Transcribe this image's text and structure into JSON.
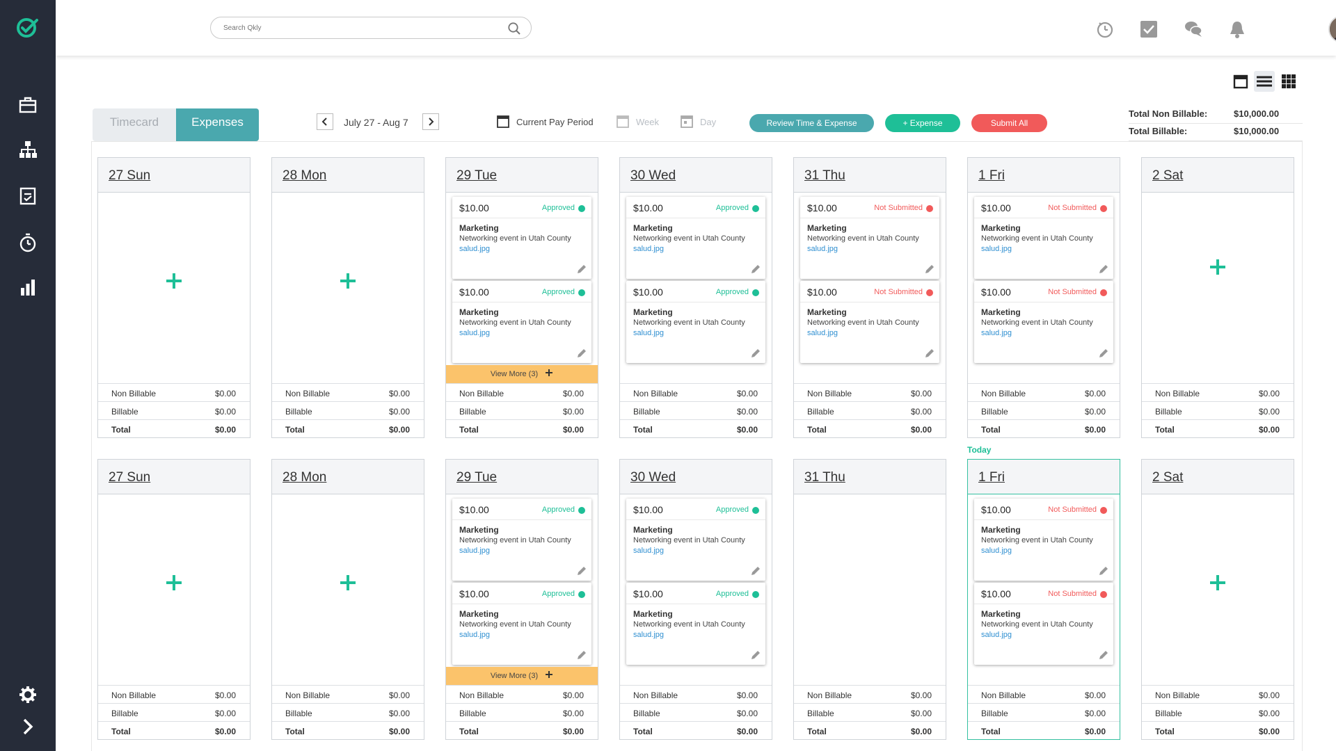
{
  "sidebar": {
    "logo_icon": "check-circle-logo",
    "items": [
      "briefcase-icon",
      "org-chart-icon",
      "clipboard-check-icon",
      "stopwatch-icon",
      "bar-chart-icon"
    ],
    "bottom": [
      "gear-icon",
      "chevron-right-icon"
    ]
  },
  "header": {
    "search_placeholder": "Search Qkly",
    "icons": [
      "timer-icon",
      "task-check-icon",
      "chat-icon",
      "bell-icon"
    ]
  },
  "tabs": [
    {
      "label": "Timecard"
    },
    {
      "label": "Expenses"
    }
  ],
  "pager": {
    "label": "July 27 - Aug 7"
  },
  "periods": [
    {
      "label": "Current Pay Period"
    },
    {
      "label": "Week"
    },
    {
      "label": "Day"
    }
  ],
  "actions": {
    "review": "Review Time & Expense",
    "add": "+ Expense",
    "submit": "Submit All"
  },
  "totals": [
    {
      "label": "Total Non Billable:",
      "value": "$10,000.00"
    },
    {
      "label": "Total Billable:",
      "value": "$10,000.00"
    }
  ],
  "today_label": "Today",
  "colors": {
    "approved": "#1ebf97",
    "not_submitted": "#f15a5a",
    "accent": "#4aa8ae",
    "view_more": "#fbc36b"
  },
  "summary_labels": {
    "non_billable": "Non Billable",
    "billable": "Billable",
    "total": "Total"
  },
  "weeks": [
    [
      {
        "label": "27 Sun",
        "expenses": [],
        "add": true,
        "non_billable": "$0.00",
        "billable": "$0.00",
        "total": "$0.00"
      },
      {
        "label": "28 Mon",
        "expenses": [],
        "add": true,
        "non_billable": "$0.00",
        "billable": "$0.00",
        "total": "$0.00"
      },
      {
        "label": "29 Tue",
        "expenses": [
          {
            "amount": "$10.00",
            "status": "Approved",
            "category": "Marketing",
            "description": "Networking event in Utah County",
            "file": "salud.jpg"
          },
          {
            "amount": "$10.00",
            "status": "Approved",
            "category": "Marketing",
            "description": "Networking event in Utah County",
            "file": "salud.jpg"
          }
        ],
        "view_more": "View More (3)",
        "non_billable": "$0.00",
        "billable": "$0.00",
        "total": "$0.00"
      },
      {
        "label": "30 Wed",
        "expenses": [
          {
            "amount": "$10.00",
            "status": "Approved",
            "category": "Marketing",
            "description": "Networking event in Utah County",
            "file": "salud.jpg"
          },
          {
            "amount": "$10.00",
            "status": "Approved",
            "category": "Marketing",
            "description": "Networking event in Utah County",
            "file": "salud.jpg"
          }
        ],
        "non_billable": "$0.00",
        "billable": "$0.00",
        "total": "$0.00"
      },
      {
        "label": "31 Thu",
        "expenses": [
          {
            "amount": "$10.00",
            "status": "Not Submitted",
            "category": "Marketing",
            "description": "Networking event in Utah County",
            "file": "salud.jpg"
          },
          {
            "amount": "$10.00",
            "status": "Not Submitted",
            "category": "Marketing",
            "description": "Networking event in Utah County",
            "file": "salud.jpg"
          }
        ],
        "non_billable": "$0.00",
        "billable": "$0.00",
        "total": "$0.00"
      },
      {
        "label": "1 Fri",
        "expenses": [
          {
            "amount": "$10.00",
            "status": "Not Submitted",
            "category": "Marketing",
            "description": "Networking event in Utah County",
            "file": "salud.jpg"
          },
          {
            "amount": "$10.00",
            "status": "Not Submitted",
            "category": "Marketing",
            "description": "Networking event in Utah County",
            "file": "salud.jpg"
          }
        ],
        "non_billable": "$0.00",
        "billable": "$0.00",
        "total": "$0.00"
      },
      {
        "label": "2 Sat",
        "expenses": [],
        "add": true,
        "non_billable": "$0.00",
        "billable": "$0.00",
        "total": "$0.00"
      }
    ],
    [
      {
        "label": "27 Sun",
        "expenses": [],
        "add": true,
        "non_billable": "$0.00",
        "billable": "$0.00",
        "total": "$0.00"
      },
      {
        "label": "28 Mon",
        "expenses": [],
        "add": true,
        "non_billable": "$0.00",
        "billable": "$0.00",
        "total": "$0.00"
      },
      {
        "label": "29 Tue",
        "expenses": [
          {
            "amount": "$10.00",
            "status": "Approved",
            "category": "Marketing",
            "description": "Networking event in Utah County",
            "file": "salud.jpg"
          },
          {
            "amount": "$10.00",
            "status": "Approved",
            "category": "Marketing",
            "description": "Networking event in Utah County",
            "file": "salud.jpg"
          }
        ],
        "view_more": "View More (3)",
        "non_billable": "$0.00",
        "billable": "$0.00",
        "total": "$0.00"
      },
      {
        "label": "30 Wed",
        "expenses": [
          {
            "amount": "$10.00",
            "status": "Approved",
            "category": "Marketing",
            "description": "Networking event in Utah County",
            "file": "salud.jpg"
          },
          {
            "amount": "$10.00",
            "status": "Approved",
            "category": "Marketing",
            "description": "Networking event in Utah County",
            "file": "salud.jpg"
          }
        ],
        "non_billable": "$0.00",
        "billable": "$0.00",
        "total": "$0.00"
      },
      {
        "label": "31 Thu",
        "expenses": [],
        "non_billable": "$0.00",
        "billable": "$0.00",
        "total": "$0.00"
      },
      {
        "label": "1 Fri",
        "today": true,
        "expenses": [
          {
            "amount": "$10.00",
            "status": "Not Submitted",
            "category": "Marketing",
            "description": "Networking event in Utah County",
            "file": "salud.jpg"
          },
          {
            "amount": "$10.00",
            "status": "Not Submitted",
            "category": "Marketing",
            "description": "Networking event in Utah County",
            "file": "salud.jpg"
          }
        ],
        "non_billable": "$0.00",
        "billable": "$0.00",
        "total": "$0.00"
      },
      {
        "label": "2 Sat",
        "expenses": [],
        "add": true,
        "non_billable": "$0.00",
        "billable": "$0.00",
        "total": "$0.00"
      }
    ]
  ]
}
